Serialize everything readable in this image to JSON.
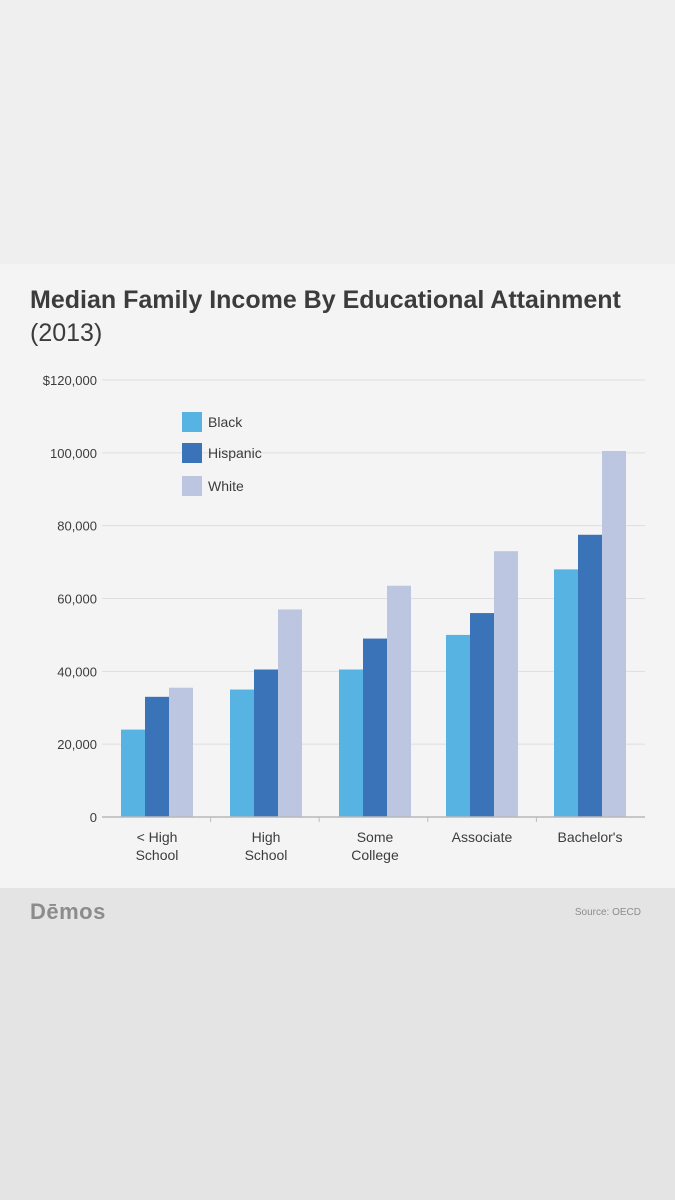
{
  "header": {
    "title_main": "Median Family Income By Educational Attainment",
    "title_year": "(2013)"
  },
  "footer": {
    "brand": "Dēmos",
    "source": "Source: OECD"
  },
  "chart_data": {
    "type": "bar",
    "title": "Median Family Income By Educational Attainment (2013)",
    "categories": [
      [
        "< High",
        "School"
      ],
      [
        "High",
        "School"
      ],
      [
        "Some",
        "College"
      ],
      [
        "Associate"
      ],
      [
        "Bachelor's"
      ]
    ],
    "series": [
      {
        "name": "Black",
        "color": "#56b3e2",
        "values": [
          24000,
          35000,
          40500,
          50000,
          68000
        ]
      },
      {
        "name": "Hispanic",
        "color": "#3b73b9",
        "values": [
          33000,
          40500,
          49000,
          56000,
          77500
        ]
      },
      {
        "name": "White",
        "color": "#bcc6e0",
        "values": [
          35500,
          57000,
          63500,
          73000,
          100500
        ]
      }
    ],
    "ylim": [
      0,
      120000
    ],
    "yticks": [
      {
        "value": 0,
        "label": "0"
      },
      {
        "value": 20000,
        "label": "20,000"
      },
      {
        "value": 40000,
        "label": "40,000"
      },
      {
        "value": 60000,
        "label": "60,000"
      },
      {
        "value": 80000,
        "label": "80,000"
      },
      {
        "value": 100000,
        "label": "100,000"
      },
      {
        "value": 120000,
        "label": "$120,000"
      }
    ],
    "grid": true,
    "legend": "top-left"
  }
}
